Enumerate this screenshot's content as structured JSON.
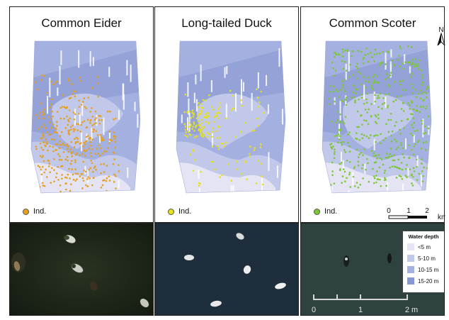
{
  "panels": [
    {
      "title": "Common Eider",
      "legend_label": "Ind.",
      "dot_color": "#e6a01e"
    },
    {
      "title": "Long-tailed Duck",
      "legend_label": "Ind.",
      "dot_color": "#e6e21a"
    },
    {
      "title": "Common Scoter",
      "legend_label": "Ind.",
      "dot_color": "#7cc833"
    }
  ],
  "north": {
    "label": "N"
  },
  "map_scale": {
    "ticks": [
      "0",
      "1",
      "2"
    ],
    "unit": "km"
  },
  "water_depth_legend": {
    "title": "Water depth",
    "classes": [
      {
        "label": "<5 m",
        "color": "#e4e4f4"
      },
      {
        "label": "5-10 m",
        "color": "#c2c8ea"
      },
      {
        "label": "10-15 m",
        "color": "#a4b0e0"
      },
      {
        "label": "15-20 m",
        "color": "#8797d2"
      }
    ]
  },
  "photo_scale": {
    "ticks": [
      "0",
      "1",
      "2 m"
    ]
  }
}
